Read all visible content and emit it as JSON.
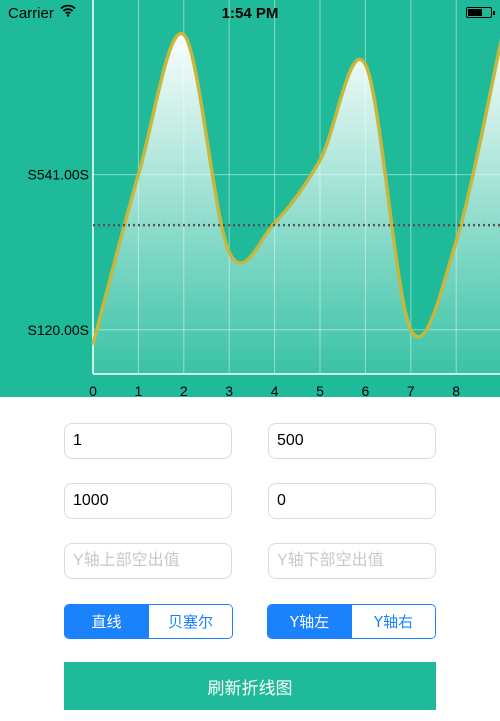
{
  "status_bar": {
    "carrier": "Carrier",
    "time": "1:54 PM",
    "icons": [
      "wifi-icon",
      "battery-icon"
    ]
  },
  "chart_data": {
    "type": "area",
    "x": [
      0,
      1,
      2,
      3,
      4,
      5,
      6,
      7,
      8,
      9
    ],
    "values": [
      80,
      541,
      921,
      330,
      410,
      580,
      840,
      120,
      360,
      910
    ],
    "x_tick_labels": [
      "0",
      "1",
      "2",
      "3",
      "4",
      "5",
      "6",
      "7",
      "8"
    ],
    "y_tick_labels": [
      {
        "value": 541,
        "label": "S541.00S"
      },
      {
        "value": 120,
        "label": "S120.00S"
      }
    ],
    "reference_line": 404,
    "xlim": [
      0,
      9
    ],
    "ylim": [
      0,
      1015
    ],
    "curve": "bezier",
    "grid": true,
    "colors": {
      "background": "#1fba9a",
      "line": "#c7b73c",
      "fill_top": "#ffffff",
      "reference_line": "#555555",
      "grid": "#ffffff"
    }
  },
  "form": {
    "field1_value": "1",
    "field2_value": "500",
    "field3_value": "1000",
    "field4_value": "0",
    "y_top_placeholder": "Y轴上部空出值",
    "y_bottom_placeholder": "Y轴下部空出值"
  },
  "line_type": {
    "options": [
      "直线",
      "贝塞尔"
    ],
    "selected": "直线"
  },
  "y_axis_side": {
    "options": [
      "Y轴左",
      "Y轴右"
    ],
    "selected": "Y轴左"
  },
  "refresh_button": "刷新折线图",
  "colors": {
    "accent": "#1fba9a",
    "segment": "#1a82fb"
  }
}
